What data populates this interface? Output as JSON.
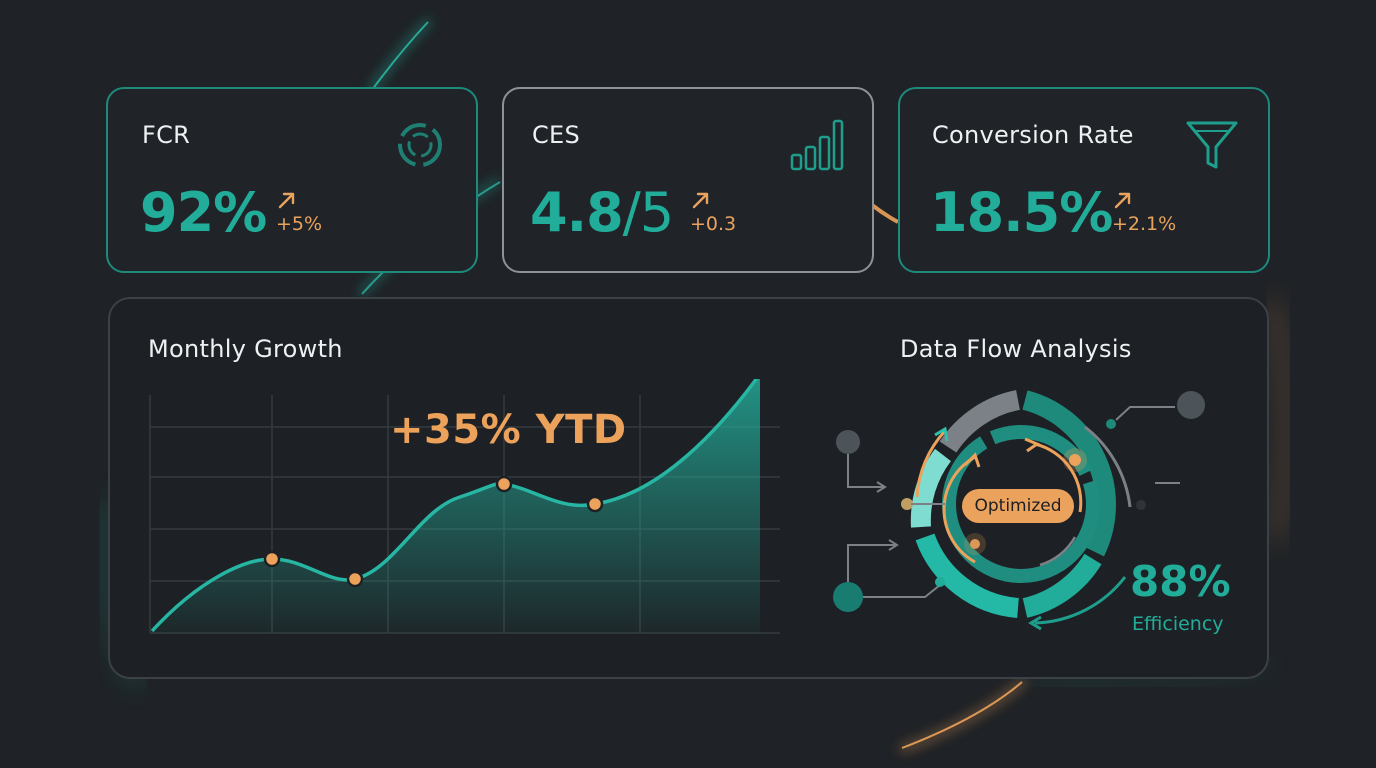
{
  "colors": {
    "background": "#1f2226",
    "accent": "#21ad9a",
    "highlight": "#eca25b",
    "text": "#eef0f1",
    "border_neutral": "#8e9295"
  },
  "kpis": [
    {
      "label": "FCR",
      "value": "92%",
      "delta": "+5%",
      "icon": "cycle-icon"
    },
    {
      "label": "CES",
      "value_main": "4.8",
      "value_suffix": "/5",
      "delta": "+0.3",
      "icon": "bar-chart-icon"
    },
    {
      "label": "Conversion Rate",
      "value": "18.5%",
      "delta": "+2.1%",
      "icon": "funnel-icon"
    }
  ],
  "monthly_growth": {
    "title": "Monthly Growth",
    "annotation": "+35% YTD"
  },
  "data_flow": {
    "title": "Data Flow Analysis",
    "status": "Optimized",
    "efficiency_value": "88%",
    "efficiency_label": "Efficiency",
    "efficiency": 0.88
  }
}
